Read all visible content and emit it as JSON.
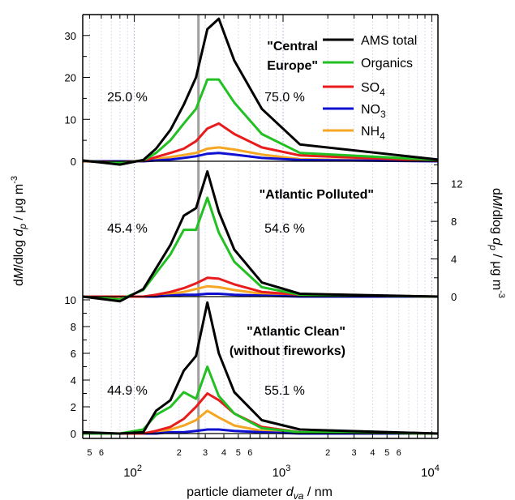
{
  "colors": {
    "ams_total": "#000000",
    "organics": "#22c022",
    "so4": "#e81c1c",
    "no3": "#1010d0",
    "nh4": "#f5a623",
    "percent": "#22b422",
    "marker_line": "#a0a0a0"
  },
  "legend": {
    "placement": "top-right",
    "entries": [
      {
        "key": "ams_total",
        "label": "AMS total",
        "sub": ""
      },
      {
        "key": "organics",
        "label": "Organics",
        "sub": ""
      },
      {
        "key": "so4",
        "label": "SO",
        "sub": "4"
      },
      {
        "key": "no3",
        "label": "NO",
        "sub": "3"
      },
      {
        "key": "nh4",
        "label": "NH",
        "sub": "4"
      }
    ]
  },
  "axes": {
    "x_label_main": "particle diameter ",
    "x_label_var": "d",
    "x_label_sub": "va",
    "x_label_unit": " / nm",
    "y_label_left": {
      "pre": "d",
      "italic1": "M",
      "mid": "/dlog ",
      "italic2": "d",
      "sub": "p",
      "unit": " / μg m",
      "sup": "-3"
    },
    "y_label_right": {
      "pre": "d",
      "italic1": "M",
      "mid": "/dlog ",
      "italic2": "d",
      "sub": "p",
      "unit": " / μg m",
      "sup": "-3"
    },
    "x_tick_major": [
      {
        "v": 100,
        "base": "10",
        "exp": "2"
      },
      {
        "v": 1000,
        "base": "10",
        "exp": "3"
      },
      {
        "v": 10000,
        "base": "10",
        "exp": "4"
      }
    ],
    "x_tick_minor_labels": [
      {
        "v": 50,
        "t": "5"
      },
      {
        "v": 60,
        "t": "6"
      },
      {
        "v": 200,
        "t": "2"
      },
      {
        "v": 300,
        "t": "3"
      },
      {
        "v": 400,
        "t": "4"
      },
      {
        "v": 500,
        "t": "5"
      },
      {
        "v": 600,
        "t": "6"
      },
      {
        "v": 2000,
        "t": "2"
      },
      {
        "v": 3000,
        "t": "3"
      },
      {
        "v": 4000,
        "t": "4"
      },
      {
        "v": 5000,
        "t": "5"
      },
      {
        "v": 6000,
        "t": "6"
      }
    ]
  },
  "chart_data": {
    "type": "line",
    "x_scale": "log",
    "xlim": [
      45,
      11000
    ],
    "split_diameter": 270,
    "panels": [
      {
        "id": "central-europe",
        "title_lines": [
          "\"Central",
          "Europe\""
        ],
        "ylim": [
          0,
          35
        ],
        "y_ticks": [
          0,
          10,
          20,
          30
        ],
        "y_axis_side": "left",
        "percent_left": "25.0 %",
        "percent_right": "75.0 %",
        "series": {
          "ams_total": {
            "x": [
              45,
              80,
              115,
              140,
              175,
              215,
              260,
              310,
              370,
              470,
              720,
              1300,
              11000
            ],
            "y": [
              0.2,
              -0.8,
              0.3,
              3.0,
              7.5,
              13.5,
              20.0,
              31.5,
              34.0,
              24.0,
              12.5,
              4.0,
              0.4
            ]
          },
          "organics": {
            "x": [
              45,
              80,
              115,
              140,
              175,
              215,
              260,
              310,
              370,
              470,
              720,
              1300,
              11000
            ],
            "y": [
              0.1,
              -0.4,
              0.2,
              2.0,
              5.0,
              9.0,
              12.5,
              19.5,
              19.5,
              14.0,
              6.5,
              2.0,
              0.3
            ]
          },
          "so4": {
            "x": [
              45,
              80,
              115,
              140,
              175,
              215,
              260,
              310,
              370,
              470,
              720,
              1300,
              11000
            ],
            "y": [
              0.0,
              -0.2,
              0.1,
              1.0,
              2.0,
              3.0,
              4.8,
              7.8,
              9.0,
              6.5,
              3.3,
              1.4,
              0.1
            ]
          },
          "no3": {
            "x": [
              45,
              80,
              115,
              140,
              175,
              215,
              260,
              310,
              370,
              470,
              720,
              1300,
              11000
            ],
            "y": [
              0.0,
              0.0,
              0.0,
              0.2,
              0.4,
              0.8,
              1.2,
              1.8,
              2.0,
              1.6,
              0.8,
              0.3,
              0.0
            ]
          },
          "nh4": {
            "x": [
              45,
              80,
              115,
              140,
              175,
              215,
              260,
              310,
              370,
              470,
              720,
              1300,
              11000
            ],
            "y": [
              0.0,
              -0.1,
              0.1,
              0.5,
              1.0,
              1.5,
              2.0,
              3.0,
              3.3,
              2.8,
              1.6,
              0.5,
              0.0
            ]
          }
        }
      },
      {
        "id": "atlantic-polluted",
        "title_lines": [
          "\"Atlantic Polluted\""
        ],
        "ylim": [
          0,
          14
        ],
        "y_ticks": [
          0,
          4,
          8,
          12
        ],
        "y_axis_side": "right",
        "percent_left": "45.4 %",
        "percent_right": "54.6 %",
        "series": {
          "ams_total": {
            "x": [
              45,
              80,
              115,
              140,
              175,
              215,
              260,
              310,
              370,
              470,
              720,
              1300,
              11000
            ],
            "y": [
              0.0,
              -0.5,
              0.8,
              3.0,
              5.5,
              8.6,
              9.4,
              13.3,
              9.0,
              5.0,
              1.5,
              0.3,
              0.0
            ]
          },
          "organics": {
            "x": [
              45,
              80,
              115,
              140,
              175,
              215,
              260,
              310,
              370,
              470,
              720,
              1300,
              11000
            ],
            "y": [
              0.0,
              -0.3,
              0.7,
              2.5,
              4.5,
              7.1,
              7.1,
              10.5,
              6.8,
              3.7,
              1.0,
              0.2,
              0.0
            ]
          },
          "so4": {
            "x": [
              45,
              80,
              115,
              140,
              175,
              215,
              260,
              310,
              370,
              470,
              720,
              1300,
              11000
            ],
            "y": [
              0.0,
              0.0,
              0.0,
              0.2,
              0.5,
              0.9,
              1.4,
              2.0,
              1.9,
              1.3,
              0.5,
              0.2,
              0.0
            ]
          },
          "no3": {
            "x": [
              45,
              80,
              115,
              140,
              175,
              215,
              260,
              310,
              370,
              470,
              720,
              1300,
              11000
            ],
            "y": [
              0.0,
              0.0,
              0.0,
              0.0,
              0.1,
              0.2,
              0.2,
              0.3,
              0.3,
              0.2,
              0.1,
              0.0,
              0.0
            ]
          },
          "nh4": {
            "x": [
              45,
              80,
              115,
              140,
              175,
              215,
              260,
              310,
              370,
              470,
              720,
              1300,
              11000
            ],
            "y": [
              0.0,
              0.0,
              0.0,
              0.1,
              0.3,
              0.5,
              0.8,
              1.1,
              1.0,
              0.7,
              0.3,
              0.1,
              0.0
            ]
          }
        }
      },
      {
        "id": "atlantic-clean",
        "title_lines": [
          "\"Atlantic Clean\"",
          "(without fireworks)"
        ],
        "ylim": [
          0,
          10
        ],
        "y_ticks": [
          0,
          2,
          4,
          6,
          8,
          10
        ],
        "y_axis_side": "left",
        "percent_left": "44.9 %",
        "percent_right": "55.1 %",
        "series": {
          "ams_total": {
            "x": [
              45,
              80,
              115,
              140,
              175,
              215,
              260,
              310,
              370,
              470,
              720,
              1300,
              11000
            ],
            "y": [
              0.1,
              0.0,
              0.1,
              1.7,
              2.5,
              4.7,
              5.8,
              9.8,
              6.0,
              3.1,
              1.0,
              0.3,
              0.0
            ]
          },
          "organics": {
            "x": [
              45,
              80,
              115,
              140,
              175,
              215,
              260,
              310,
              370,
              470,
              720,
              1300,
              11000
            ],
            "y": [
              0.0,
              0.0,
              0.3,
              1.4,
              2.0,
              3.1,
              2.6,
              5.0,
              2.8,
              1.5,
              0.4,
              0.1,
              0.0
            ]
          },
          "so4": {
            "x": [
              45,
              80,
              115,
              140,
              175,
              215,
              260,
              310,
              370,
              470,
              720,
              1300,
              11000
            ],
            "y": [
              0.0,
              0.0,
              0.0,
              0.2,
              0.5,
              1.1,
              2.0,
              3.0,
              2.5,
              1.5,
              0.5,
              0.1,
              0.0
            ]
          },
          "no3": {
            "x": [
              45,
              80,
              115,
              140,
              175,
              215,
              260,
              310,
              370,
              470,
              720,
              1300,
              11000
            ],
            "y": [
              0.0,
              0.0,
              0.0,
              0.0,
              0.1,
              0.1,
              0.2,
              0.3,
              0.3,
              0.2,
              0.1,
              0.0,
              0.0
            ]
          },
          "nh4": {
            "x": [
              45,
              80,
              115,
              140,
              175,
              215,
              260,
              310,
              370,
              470,
              720,
              1300,
              11000
            ],
            "y": [
              0.0,
              0.0,
              0.0,
              0.1,
              0.3,
              0.6,
              1.0,
              1.7,
              1.2,
              0.6,
              0.2,
              0.0,
              0.0
            ]
          }
        }
      }
    ]
  }
}
